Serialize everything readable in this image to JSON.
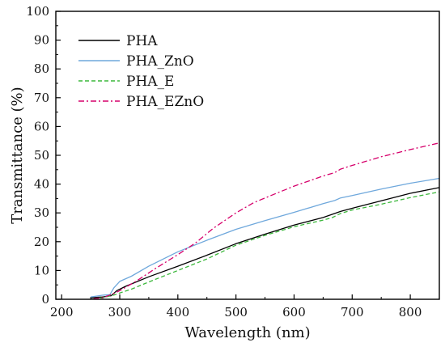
{
  "chart_data": {
    "type": "line",
    "title": "",
    "xlabel": "Wavelength (nm)",
    "ylabel": "Transmittance (%)",
    "xlim": [
      190,
      850
    ],
    "ylim": [
      0,
      100
    ],
    "x_ticks": [
      "200",
      "300",
      "400",
      "500",
      "600",
      "700",
      "800"
    ],
    "y_ticks": [
      "0",
      "10",
      "20",
      "30",
      "40",
      "50",
      "60",
      "70",
      "80",
      "90",
      "100"
    ],
    "grid": false,
    "legend_position": "top-left",
    "series": [
      {
        "name": "PHA",
        "color": "#000000",
        "dash": "solid",
        "points": [
          [
            250,
            0.5
          ],
          [
            270,
            0.8
          ],
          [
            285,
            1.2
          ],
          [
            295,
            3.0
          ],
          [
            310,
            4.5
          ],
          [
            350,
            7.8
          ],
          [
            400,
            11.5
          ],
          [
            450,
            15.3
          ],
          [
            500,
            19.3
          ],
          [
            550,
            22.6
          ],
          [
            600,
            25.8
          ],
          [
            650,
            28.4
          ],
          [
            680,
            30.5
          ],
          [
            700,
            31.6
          ],
          [
            750,
            34.2
          ],
          [
            800,
            36.8
          ],
          [
            850,
            38.8
          ]
        ]
      },
      {
        "name": "PHA_ZnO",
        "color": "#6fa8dc",
        "dash": "solid",
        "points": [
          [
            250,
            0.8
          ],
          [
            270,
            1.4
          ],
          [
            283,
            1.6
          ],
          [
            290,
            4.0
          ],
          [
            300,
            6.2
          ],
          [
            320,
            8.0
          ],
          [
            350,
            11.5
          ],
          [
            400,
            16.5
          ],
          [
            450,
            20.5
          ],
          [
            500,
            24.3
          ],
          [
            550,
            27.3
          ],
          [
            600,
            30.2
          ],
          [
            650,
            33.2
          ],
          [
            670,
            34.3
          ],
          [
            680,
            35.2
          ],
          [
            700,
            36.0
          ],
          [
            750,
            38.3
          ],
          [
            800,
            40.3
          ],
          [
            850,
            42.0
          ]
        ]
      },
      {
        "name": "PHA_E",
        "color": "#3cb83c",
        "dash": "dashed",
        "points": [
          [
            255,
            0.2
          ],
          [
            270,
            0.5
          ],
          [
            290,
            1.5
          ],
          [
            300,
            2.2
          ],
          [
            320,
            3.5
          ],
          [
            350,
            6.0
          ],
          [
            400,
            10.0
          ],
          [
            450,
            14.0
          ],
          [
            500,
            18.8
          ],
          [
            550,
            22.2
          ],
          [
            600,
            25.2
          ],
          [
            650,
            27.5
          ],
          [
            665,
            28.3
          ],
          [
            680,
            29.8
          ],
          [
            700,
            31.0
          ],
          [
            750,
            33.0
          ],
          [
            800,
            35.3
          ],
          [
            850,
            37.3
          ]
        ]
      },
      {
        "name": "PHA_EZnO",
        "color": "#d6006b",
        "dash": "dashdot",
        "points": [
          [
            255,
            0.2
          ],
          [
            270,
            0.5
          ],
          [
            290,
            2.0
          ],
          [
            300,
            3.0
          ],
          [
            330,
            6.5
          ],
          [
            360,
            10.5
          ],
          [
            400,
            15.5
          ],
          [
            430,
            19.5
          ],
          [
            460,
            24.5
          ],
          [
            500,
            30.0
          ],
          [
            530,
            33.5
          ],
          [
            560,
            36.0
          ],
          [
            600,
            39.3
          ],
          [
            650,
            42.8
          ],
          [
            670,
            44.0
          ],
          [
            680,
            45.2
          ],
          [
            700,
            46.5
          ],
          [
            750,
            49.5
          ],
          [
            800,
            52.0
          ],
          [
            850,
            54.3
          ]
        ]
      }
    ]
  }
}
